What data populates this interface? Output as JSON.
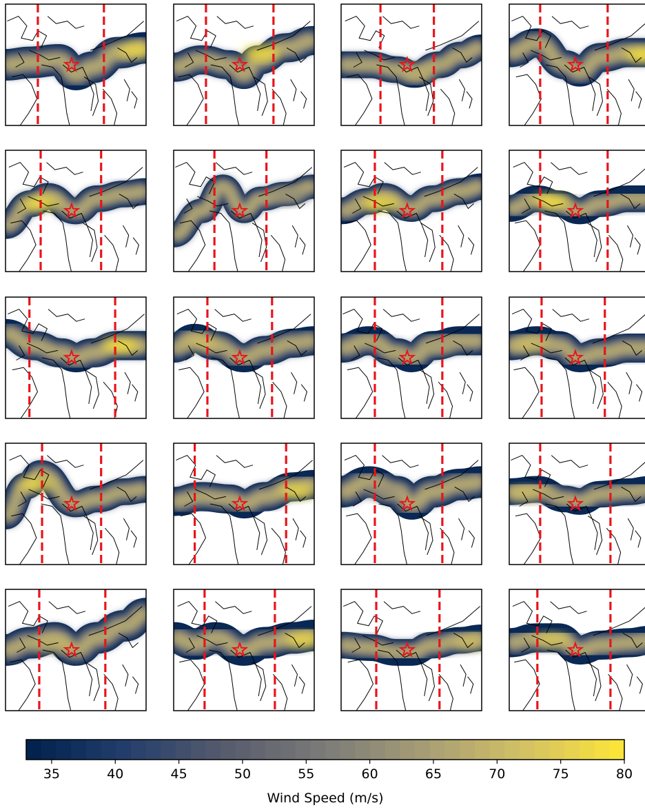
{
  "chart_data": {
    "type": "heatmap",
    "description_free": true,
    "grid": {
      "rows": 5,
      "cols": 4
    },
    "field": "wind speed",
    "colorbar": {
      "label": "Wind Speed (m/s)",
      "min": 33,
      "max": 80,
      "ticks": [
        35,
        40,
        45,
        50,
        55,
        60,
        65,
        70,
        75,
        80
      ],
      "tick_labels": [
        "35",
        "40",
        "45",
        "50",
        "55",
        "60",
        "65",
        "70",
        "75",
        "80"
      ],
      "colormap_stops": [
        "#00204c",
        "#233e6c",
        "#575c6d",
        "#7c7b78",
        "#a69d75",
        "#d3c164",
        "#fde737"
      ]
    },
    "marker": {
      "symbol": "star",
      "color": "#e8141b"
    },
    "dashed_line_color": "#e8141b",
    "panels": [
      {
        "row": 0,
        "col": 0,
        "jet_path": [
          [
            0,
            0.5
          ],
          [
            0.18,
            0.48
          ],
          [
            0.38,
            0.46
          ],
          [
            0.5,
            0.58
          ],
          [
            0.62,
            0.52
          ],
          [
            0.8,
            0.4
          ],
          [
            1,
            0.36
          ]
        ],
        "width": 0.26,
        "peak": [
          0.92,
          0.38
        ],
        "peak_v": 78,
        "lines": [
          0.23,
          0.7
        ]
      },
      {
        "row": 0,
        "col": 1,
        "jet_path": [
          [
            0,
            0.52
          ],
          [
            0.2,
            0.46
          ],
          [
            0.4,
            0.5
          ],
          [
            0.5,
            0.58
          ],
          [
            0.6,
            0.46
          ],
          [
            0.8,
            0.36
          ],
          [
            1,
            0.3
          ]
        ],
        "width": 0.24,
        "peak": [
          0.62,
          0.4
        ],
        "peak_v": 80,
        "lines": [
          0.23,
          0.71
        ]
      },
      {
        "row": 0,
        "col": 2,
        "jet_path": [
          [
            0,
            0.5
          ],
          [
            0.2,
            0.5
          ],
          [
            0.4,
            0.54
          ],
          [
            0.52,
            0.58
          ],
          [
            0.7,
            0.5
          ],
          [
            0.85,
            0.42
          ],
          [
            1,
            0.36
          ]
        ],
        "width": 0.22,
        "peak": [
          0.55,
          0.56
        ],
        "peak_v": 68,
        "lines": [
          0.28,
          0.66
        ]
      },
      {
        "row": 0,
        "col": 3,
        "jet_path": [
          [
            0,
            0.4
          ],
          [
            0.2,
            0.32
          ],
          [
            0.4,
            0.5
          ],
          [
            0.5,
            0.56
          ],
          [
            0.65,
            0.44
          ],
          [
            0.85,
            0.4
          ],
          [
            1,
            0.4
          ]
        ],
        "width": 0.24,
        "peak": [
          0.95,
          0.42
        ],
        "peak_v": 80,
        "lines": [
          0.22,
          0.7
        ]
      },
      {
        "row": 1,
        "col": 0,
        "jet_path": [
          [
            0,
            0.62
          ],
          [
            0.18,
            0.44
          ],
          [
            0.3,
            0.38
          ],
          [
            0.5,
            0.5
          ],
          [
            0.65,
            0.4
          ],
          [
            0.85,
            0.36
          ],
          [
            1,
            0.34
          ]
        ],
        "width": 0.22,
        "peak": [
          0.25,
          0.44
        ],
        "peak_v": 80,
        "lines": [
          0.25,
          0.68
        ]
      },
      {
        "row": 1,
        "col": 1,
        "jet_path": [
          [
            0,
            0.7
          ],
          [
            0.2,
            0.5
          ],
          [
            0.35,
            0.3
          ],
          [
            0.5,
            0.5
          ],
          [
            0.62,
            0.4
          ],
          [
            0.8,
            0.36
          ],
          [
            1,
            0.3
          ]
        ],
        "width": 0.2,
        "peak": [
          0.82,
          0.38
        ],
        "peak_v": 60,
        "lines": [
          0.29,
          0.66
        ]
      },
      {
        "row": 1,
        "col": 2,
        "jet_path": [
          [
            0,
            0.5
          ],
          [
            0.2,
            0.42
          ],
          [
            0.3,
            0.38
          ],
          [
            0.5,
            0.48
          ],
          [
            0.65,
            0.4
          ],
          [
            0.85,
            0.34
          ],
          [
            1,
            0.3
          ]
        ],
        "width": 0.22,
        "peak": [
          0.28,
          0.44
        ],
        "peak_v": 80,
        "lines": [
          0.24,
          0.72
        ]
      },
      {
        "row": 1,
        "col": 3,
        "jet_path": [
          [
            0,
            0.48
          ],
          [
            0.2,
            0.4
          ],
          [
            0.35,
            0.44
          ],
          [
            0.5,
            0.5
          ],
          [
            0.65,
            0.44
          ],
          [
            0.85,
            0.4
          ],
          [
            1,
            0.4
          ]
        ],
        "width": 0.22,
        "peak": [
          0.3,
          0.42
        ],
        "peak_v": 80,
        "lines": [
          0.22,
          0.7
        ]
      },
      {
        "row": 2,
        "col": 0,
        "jet_path": [
          [
            0,
            0.3
          ],
          [
            0.2,
            0.4
          ],
          [
            0.4,
            0.46
          ],
          [
            0.5,
            0.5
          ],
          [
            0.62,
            0.46
          ],
          [
            0.8,
            0.4
          ],
          [
            1,
            0.4
          ]
        ],
        "width": 0.24,
        "peak": [
          0.82,
          0.4
        ],
        "peak_v": 80,
        "lines": [
          0.17,
          0.78
        ]
      },
      {
        "row": 2,
        "col": 1,
        "jet_path": [
          [
            0,
            0.42
          ],
          [
            0.15,
            0.34
          ],
          [
            0.3,
            0.4
          ],
          [
            0.5,
            0.5
          ],
          [
            0.65,
            0.44
          ],
          [
            0.85,
            0.38
          ],
          [
            1,
            0.36
          ]
        ],
        "width": 0.24,
        "peak": [
          0.2,
          0.38
        ],
        "peak_v": 72,
        "lines": [
          0.24,
          0.7
        ]
      },
      {
        "row": 2,
        "col": 2,
        "jet_path": [
          [
            0,
            0.42
          ],
          [
            0.2,
            0.36
          ],
          [
            0.4,
            0.46
          ],
          [
            0.5,
            0.5
          ],
          [
            0.65,
            0.4
          ],
          [
            0.85,
            0.36
          ],
          [
            1,
            0.36
          ]
        ],
        "width": 0.24,
        "peak": [
          0.7,
          0.4
        ],
        "peak_v": 64,
        "lines": [
          0.24,
          0.72
        ]
      },
      {
        "row": 2,
        "col": 3,
        "jet_path": [
          [
            0,
            0.4
          ],
          [
            0.2,
            0.36
          ],
          [
            0.35,
            0.4
          ],
          [
            0.5,
            0.5
          ],
          [
            0.65,
            0.46
          ],
          [
            0.85,
            0.42
          ],
          [
            1,
            0.42
          ]
        ],
        "width": 0.24,
        "peak": [
          0.15,
          0.4
        ],
        "peak_v": 72,
        "lines": [
          0.23,
          0.68
        ]
      },
      {
        "row": 3,
        "col": 0,
        "jet_path": [
          [
            0,
            0.6
          ],
          [
            0.15,
            0.35
          ],
          [
            0.25,
            0.25
          ],
          [
            0.5,
            0.5
          ],
          [
            0.65,
            0.46
          ],
          [
            0.85,
            0.4
          ],
          [
            1,
            0.38
          ]
        ],
        "width": 0.22,
        "peak": [
          0.22,
          0.34
        ],
        "peak_v": 78,
        "lines": [
          0.26,
          0.68
        ]
      },
      {
        "row": 3,
        "col": 1,
        "jet_path": [
          [
            0,
            0.48
          ],
          [
            0.2,
            0.44
          ],
          [
            0.4,
            0.46
          ],
          [
            0.5,
            0.5
          ],
          [
            0.65,
            0.44
          ],
          [
            0.85,
            0.36
          ],
          [
            1,
            0.34
          ]
        ],
        "width": 0.24,
        "peak": [
          0.88,
          0.4
        ],
        "peak_v": 78,
        "lines": [
          0.15,
          0.8
        ]
      },
      {
        "row": 3,
        "col": 2,
        "jet_path": [
          [
            0,
            0.4
          ],
          [
            0.2,
            0.32
          ],
          [
            0.4,
            0.4
          ],
          [
            0.5,
            0.5
          ],
          [
            0.65,
            0.4
          ],
          [
            0.85,
            0.34
          ],
          [
            1,
            0.32
          ]
        ],
        "width": 0.26,
        "peak": [
          0.3,
          0.4
        ],
        "peak_v": 60,
        "lines": [
          0.24,
          0.72
        ]
      },
      {
        "row": 3,
        "col": 3,
        "jet_path": [
          [
            0,
            0.4
          ],
          [
            0.2,
            0.38
          ],
          [
            0.4,
            0.46
          ],
          [
            0.5,
            0.48
          ],
          [
            0.65,
            0.42
          ],
          [
            0.85,
            0.4
          ],
          [
            1,
            0.38
          ]
        ],
        "width": 0.22,
        "peak": [
          0.12,
          0.42
        ],
        "peak_v": 72,
        "lines": [
          0.22,
          0.72
        ]
      },
      {
        "row": 4,
        "col": 0,
        "jet_path": [
          [
            0,
            0.5
          ],
          [
            0.18,
            0.44
          ],
          [
            0.35,
            0.4
          ],
          [
            0.5,
            0.5
          ],
          [
            0.65,
            0.4
          ],
          [
            0.85,
            0.3
          ],
          [
            1,
            0.2
          ]
        ],
        "width": 0.26,
        "peak": [
          0.35,
          0.46
        ],
        "peak_v": 70,
        "lines": [
          0.24,
          0.71
        ]
      },
      {
        "row": 4,
        "col": 1,
        "jet_path": [
          [
            0,
            0.4
          ],
          [
            0.15,
            0.45
          ],
          [
            0.3,
            0.4
          ],
          [
            0.5,
            0.5
          ],
          [
            0.65,
            0.44
          ],
          [
            0.85,
            0.4
          ],
          [
            1,
            0.38
          ]
        ],
        "width": 0.26,
        "peak": [
          0.92,
          0.42
        ],
        "peak_v": 78,
        "lines": [
          0.22,
          0.72
        ]
      },
      {
        "row": 4,
        "col": 2,
        "jet_path": [
          [
            0,
            0.46
          ],
          [
            0.2,
            0.48
          ],
          [
            0.4,
            0.52
          ],
          [
            0.5,
            0.52
          ],
          [
            0.65,
            0.46
          ],
          [
            0.85,
            0.42
          ],
          [
            1,
            0.4
          ]
        ],
        "width": 0.22,
        "peak": [
          0.92,
          0.44
        ],
        "peak_v": 72,
        "lines": [
          0.25,
          0.7
        ]
      },
      {
        "row": 4,
        "col": 3,
        "jet_path": [
          [
            0,
            0.44
          ],
          [
            0.2,
            0.4
          ],
          [
            0.35,
            0.4
          ],
          [
            0.5,
            0.5
          ],
          [
            0.65,
            0.46
          ],
          [
            0.85,
            0.44
          ],
          [
            1,
            0.42
          ]
        ],
        "width": 0.24,
        "peak": [
          0.3,
          0.42
        ],
        "peak_v": 74,
        "lines": [
          0.2,
          0.72
        ]
      }
    ]
  }
}
